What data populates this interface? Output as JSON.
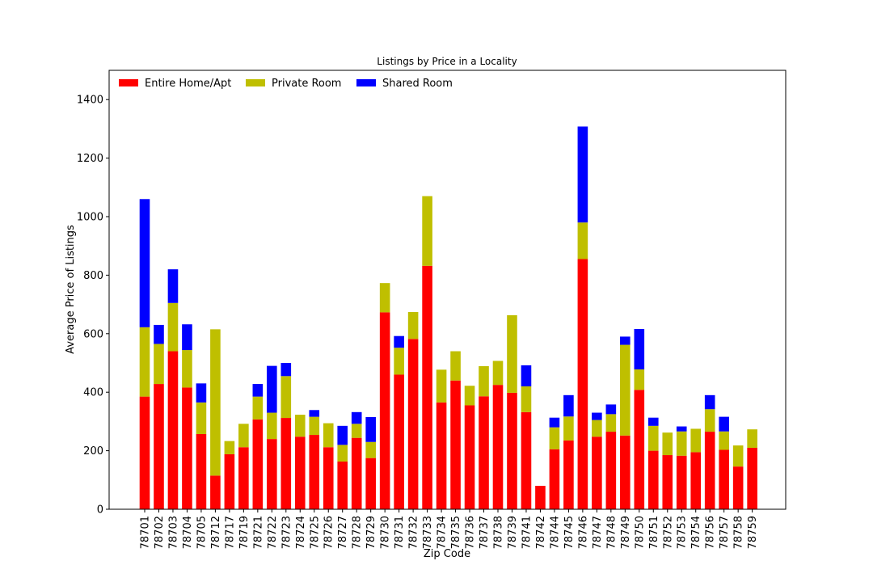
{
  "chart_data": {
    "type": "bar",
    "stacked": true,
    "title": "Listings by Price in a Locality",
    "xlabel": "Zip Code",
    "ylabel": "Average Price of Listings",
    "ylim": [
      0,
      1500
    ],
    "yticks": [
      0,
      200,
      400,
      600,
      800,
      1000,
      1200,
      1400
    ],
    "grid": false,
    "legend_position": "top-left",
    "categories": [
      "78701",
      "78702",
      "78703",
      "78704",
      "78705",
      "78712",
      "78717",
      "78719",
      "78721",
      "78722",
      "78723",
      "78724",
      "78725",
      "78726",
      "78727",
      "78728",
      "78729",
      "78730",
      "78731",
      "78732",
      "78733",
      "78734",
      "78735",
      "78736",
      "78737",
      "78738",
      "78739",
      "78741",
      "78742",
      "78744",
      "78745",
      "78746",
      "78747",
      "78748",
      "78749",
      "78750",
      "78751",
      "78752",
      "78753",
      "78754",
      "78756",
      "78757",
      "78758",
      "78759"
    ],
    "series": [
      {
        "name": "Entire Home/Apt",
        "color": "#ff0000",
        "values": [
          385,
          428,
          540,
          416,
          257,
          115,
          188,
          212,
          307,
          240,
          312,
          248,
          254,
          212,
          163,
          244,
          175,
          673,
          460,
          582,
          832,
          365,
          440,
          355,
          386,
          425,
          398,
          332,
          80,
          205,
          235,
          855,
          248,
          265,
          252,
          408,
          200,
          185,
          183,
          195,
          265,
          203,
          146,
          210
        ]
      },
      {
        "name": "Private Room",
        "color": "#bfbf00",
        "values": [
          237,
          137,
          165,
          128,
          108,
          500,
          45,
          80,
          78,
          90,
          143,
          75,
          62,
          82,
          57,
          48,
          55,
          100,
          92,
          92,
          238,
          112,
          100,
          67,
          103,
          82,
          265,
          88,
          0,
          75,
          82,
          125,
          57,
          60,
          310,
          70,
          85,
          77,
          83,
          80,
          77,
          63,
          72,
          63
        ]
      },
      {
        "name": "Shared Room",
        "color": "#0000ff",
        "values": [
          438,
          65,
          115,
          88,
          65,
          0,
          0,
          0,
          43,
          160,
          45,
          0,
          23,
          0,
          65,
          40,
          85,
          0,
          40,
          0,
          0,
          0,
          0,
          0,
          0,
          0,
          0,
          72,
          0,
          33,
          73,
          328,
          25,
          33,
          28,
          138,
          28,
          0,
          17,
          0,
          48,
          50,
          0,
          0
        ]
      }
    ]
  }
}
